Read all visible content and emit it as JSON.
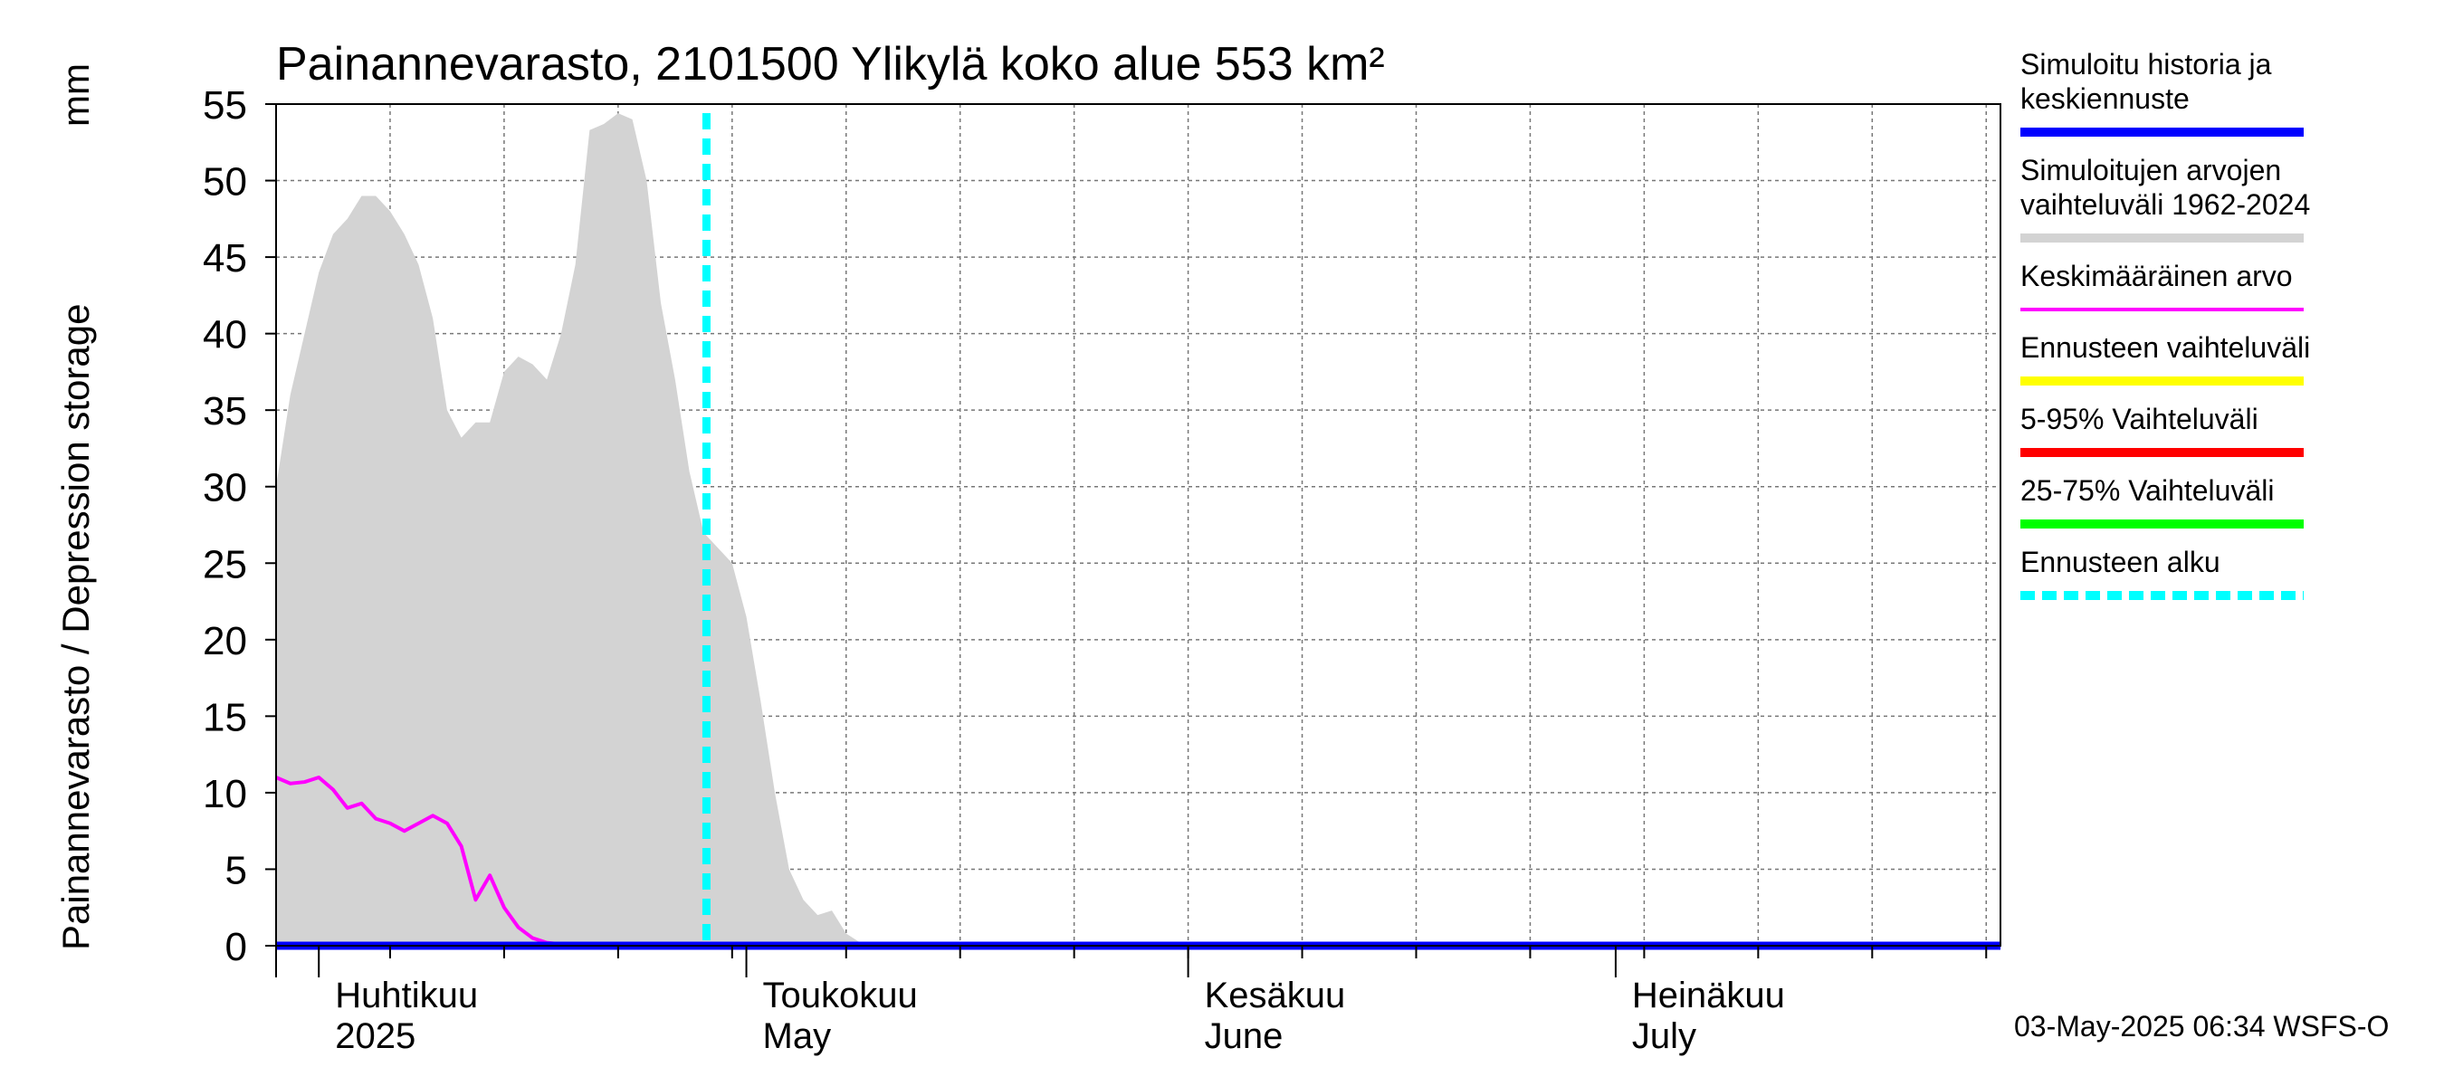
{
  "chart_data": {
    "type": "area",
    "title": "Painannevarasto, 2101500 Ylikylä koko alue 553 km²",
    "ylabel": "Painannevarasto / Depression storage",
    "yunit": "mm",
    "ylim": [
      0,
      55
    ],
    "yticks": [
      "0",
      "5",
      "10",
      "15",
      "20",
      "25",
      "30",
      "35",
      "40",
      "45",
      "50",
      "55"
    ],
    "xlim_days": [
      0,
      121
    ],
    "x_unit": "days since 2025-03-29",
    "months": [
      {
        "fi": "Huhtikuu",
        "en": "2025",
        "day": 3
      },
      {
        "fi": "Toukokuu",
        "en": "May",
        "day": 33
      },
      {
        "fi": "Kesäkuu",
        "en": "June",
        "day": 64
      },
      {
        "fi": "Heinäkuu",
        "en": "July",
        "day": 94
      }
    ],
    "forecast_start_day": 30.2,
    "series": [
      {
        "name": "Simuloitujen arvojen vaihteluväli 1962-2024",
        "color": "#d3d3d3",
        "x": [
          0,
          1,
          2,
          3,
          4,
          5,
          6,
          7,
          8,
          9,
          10,
          11,
          12,
          13,
          14,
          15,
          16,
          17,
          18,
          19,
          20,
          21,
          22,
          23,
          24,
          25,
          26,
          27,
          28,
          29,
          30,
          31,
          32,
          33,
          34,
          35,
          36,
          37,
          38,
          39,
          40,
          41,
          42,
          43,
          121
        ],
        "upper": [
          30,
          36,
          40,
          44,
          46.5,
          47.5,
          49,
          49,
          48,
          46.5,
          44.5,
          41,
          35,
          33.2,
          34.2,
          34.2,
          37.5,
          38.5,
          38,
          37,
          40,
          44.5,
          53.3,
          53.7,
          54.4,
          54.0,
          50,
          42,
          37,
          31,
          27,
          26,
          25,
          21.5,
          16,
          10,
          5,
          3,
          2,
          2.3,
          0.8,
          0.2,
          0.1,
          0.1,
          0.1
        ],
        "lower": [
          0,
          0,
          0,
          0,
          0,
          0,
          0,
          0,
          0,
          0,
          0,
          0,
          0,
          0,
          0,
          0,
          0,
          0,
          0,
          0,
          0,
          0,
          0,
          0,
          0,
          0,
          0,
          0,
          0,
          0,
          0,
          0,
          0,
          0,
          0,
          0,
          0,
          0,
          0,
          0,
          0,
          0,
          0,
          0,
          0
        ]
      },
      {
        "name": "Keskimääräinen arvo",
        "color": "#ff00ff",
        "x": [
          0,
          1,
          2,
          3,
          4,
          5,
          6,
          7,
          8,
          9,
          10,
          11,
          12,
          13,
          14,
          15,
          16,
          17,
          18,
          19,
          20,
          21,
          22,
          121
        ],
        "values": [
          11,
          10.6,
          10.7,
          11,
          10.2,
          9,
          9.3,
          8.3,
          8,
          7.5,
          8,
          8.5,
          8,
          6.5,
          3,
          4.6,
          2.5,
          1.2,
          0.5,
          0.2,
          0.1,
          0.05,
          0,
          0
        ]
      },
      {
        "name": "Simuloitu historia ja keskiennuste",
        "color": "#0000ff",
        "x": [
          0,
          121
        ],
        "values": [
          0,
          0
        ]
      }
    ],
    "legend": [
      {
        "label": "Simuloitu historia ja keskiennuste",
        "color": "#0000ff",
        "style": "solid"
      },
      {
        "label": "Simuloitujen arvojen vaihteluväli 1962-2024",
        "color": "#d3d3d3",
        "style": "solid"
      },
      {
        "label": "Keskimääräinen arvo",
        "color": "#ff00ff",
        "style": "thin"
      },
      {
        "label": "Ennusteen vaihteluväli",
        "color": "#ffff00",
        "style": "solid"
      },
      {
        "label": "5-95% Vaihteluväli",
        "color": "#ff0000",
        "style": "solid"
      },
      {
        "label": "25-75% Vaihteluväli",
        "color": "#00ff00",
        "style": "solid"
      },
      {
        "label": "Ennusteen alku",
        "color": "#00ffff",
        "style": "dashed"
      }
    ],
    "footer": "03-May-2025 06:34 WSFS-O"
  }
}
